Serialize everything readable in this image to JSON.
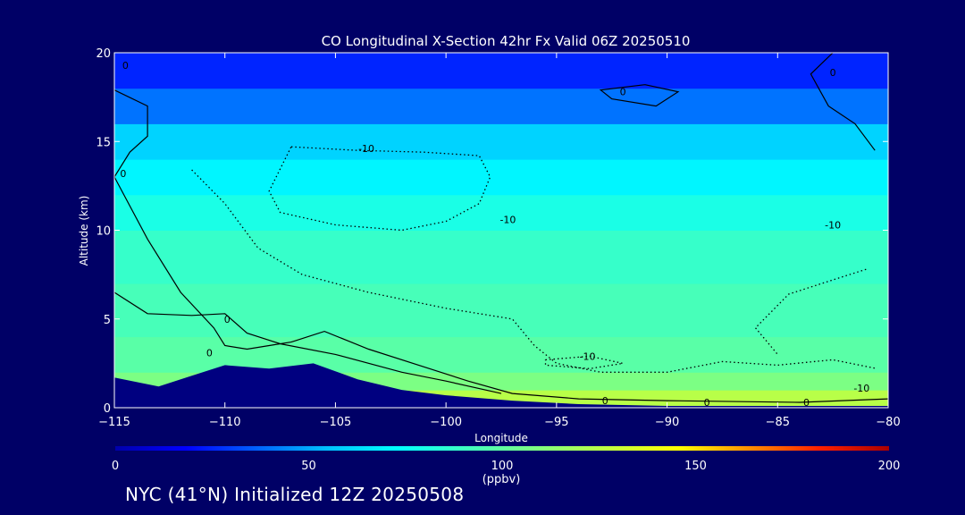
{
  "footer_text": "NYC (41°N) Initialized 12Z 20250508",
  "chart_data": {
    "type": "heatmap",
    "title": "CO Longitudinal X-Section 42hr  Fx Valid 06Z 20250510",
    "xlabel": "Longitude",
    "ylabel": "Altitude (km)",
    "xlim": [
      -115,
      -80
    ],
    "ylim": [
      0,
      20
    ],
    "x_ticks": [
      -115,
      -110,
      -105,
      -100,
      -95,
      -90,
      -85,
      -80
    ],
    "y_ticks": [
      0,
      5,
      10,
      15,
      20
    ],
    "colorbar": {
      "label": "(ppbv)",
      "range": [
        0,
        200
      ],
      "ticks": [
        0,
        50,
        100,
        150,
        200
      ],
      "colors": [
        "#0000aa",
        "#0000ff",
        "#0060ff",
        "#00c0ff",
        "#00ffff",
        "#40ffc0",
        "#80ff80",
        "#c0ff40",
        "#ffff00",
        "#ff9000",
        "#ff2000",
        "#aa0000"
      ]
    },
    "altitude_bands": [
      {
        "bottom": 0,
        "top": 1,
        "value": 125
      },
      {
        "bottom": 1,
        "top": 2,
        "value": 108
      },
      {
        "bottom": 2,
        "top": 4,
        "value": 98
      },
      {
        "bottom": 4,
        "top": 7,
        "value": 93
      },
      {
        "bottom": 7,
        "top": 10,
        "value": 88
      },
      {
        "bottom": 10,
        "top": 12,
        "value": 80
      },
      {
        "bottom": 12,
        "top": 14,
        "value": 70
      },
      {
        "bottom": 14,
        "top": 16,
        "value": 60
      },
      {
        "bottom": 16,
        "top": 18,
        "value": 40
      },
      {
        "bottom": 18,
        "top": 20,
        "value": 25
      }
    ],
    "terrain_km": [
      {
        "lon": -115,
        "alt": 1.7
      },
      {
        "lon": -113,
        "alt": 1.2
      },
      {
        "lon": -111.5,
        "alt": 1.8
      },
      {
        "lon": -110,
        "alt": 2.4
      },
      {
        "lon": -108,
        "alt": 2.2
      },
      {
        "lon": -106,
        "alt": 2.5
      },
      {
        "lon": -104,
        "alt": 1.6
      },
      {
        "lon": -102,
        "alt": 1.0
      },
      {
        "lon": -100,
        "alt": 0.7
      },
      {
        "lon": -97,
        "alt": 0.4
      },
      {
        "lon": -94,
        "alt": 0.2
      },
      {
        "lon": -90,
        "alt": 0.1
      },
      {
        "lon": -85,
        "alt": 0.1
      },
      {
        "lon": -80,
        "alt": 0.1
      }
    ],
    "contours": [
      {
        "level": "0",
        "style": "solid",
        "points": [
          [
            -115,
            17.9
          ],
          [
            -113.5,
            17.0
          ],
          [
            -113.5,
            15.3
          ],
          [
            -114.3,
            14.4
          ],
          [
            -115,
            13.0
          ],
          [
            -113.5,
            9.5
          ],
          [
            -112,
            6.5
          ],
          [
            -110.5,
            4.5
          ],
          [
            -110,
            3.5
          ],
          [
            -109,
            3.3
          ],
          [
            -108,
            3.5
          ],
          [
            -107,
            3.7
          ],
          [
            -105.5,
            4.3
          ],
          [
            -103.5,
            3.3
          ],
          [
            -101,
            2.3
          ],
          [
            -99,
            1.5
          ],
          [
            -97,
            0.8
          ],
          [
            -94,
            0.5
          ],
          [
            -90,
            0.4
          ],
          [
            -84,
            0.3
          ],
          [
            -80,
            0.5
          ]
        ]
      },
      {
        "level": "0",
        "style": "solid",
        "points": [
          [
            -115,
            6.5
          ],
          [
            -113.5,
            5.3
          ],
          [
            -111.5,
            5.2
          ],
          [
            -110,
            5.3
          ],
          [
            -109,
            4.2
          ],
          [
            -107.5,
            3.6
          ],
          [
            -105,
            3.0
          ],
          [
            -102,
            2.0
          ],
          [
            -100,
            1.5
          ],
          [
            -97.5,
            0.8
          ]
        ]
      },
      {
        "level": "0",
        "style": "solid",
        "points": [
          [
            -91,
            18.2
          ],
          [
            -89.5,
            17.8
          ],
          [
            -90.5,
            17.0
          ],
          [
            -92.5,
            17.4
          ],
          [
            -93,
            17.9
          ],
          [
            -91,
            18.2
          ]
        ]
      },
      {
        "level": "0",
        "style": "solid",
        "points": [
          [
            -82.5,
            20
          ],
          [
            -83.5,
            18.8
          ],
          [
            -82.7,
            17.0
          ],
          [
            -81.5,
            16.0
          ],
          [
            -80.6,
            14.5
          ]
        ]
      },
      {
        "level": "-10",
        "style": "dotted",
        "points": [
          [
            -107,
            14.7
          ],
          [
            -104,
            14.5
          ],
          [
            -101,
            14.4
          ],
          [
            -98.5,
            14.2
          ],
          [
            -98,
            13.0
          ],
          [
            -98.5,
            11.5
          ],
          [
            -100,
            10.5
          ],
          [
            -102,
            10.0
          ],
          [
            -105,
            10.3
          ],
          [
            -107.5,
            11.0
          ],
          [
            -108,
            12.2
          ],
          [
            -107,
            14.7
          ]
        ]
      },
      {
        "level": "-10",
        "style": "dotted",
        "points": [
          [
            -111.5,
            13.4
          ],
          [
            -110,
            11.5
          ],
          [
            -108.5,
            9.0
          ],
          [
            -106.5,
            7.5
          ],
          [
            -103.5,
            6.5
          ],
          [
            -100,
            5.6
          ],
          [
            -97,
            5.0
          ],
          [
            -96,
            3.5
          ],
          [
            -95,
            2.5
          ],
          [
            -93,
            2.0
          ],
          [
            -90,
            2.0
          ],
          [
            -87.5,
            2.6
          ],
          [
            -85,
            2.4
          ],
          [
            -82.5,
            2.7
          ],
          [
            -80.5,
            2.2
          ]
        ]
      },
      {
        "level": "-10",
        "style": "dotted",
        "points": [
          [
            -81,
            7.8
          ],
          [
            -82.5,
            7.2
          ],
          [
            -84.5,
            6.4
          ],
          [
            -86,
            4.5
          ],
          [
            -85,
            3.0
          ]
        ]
      },
      {
        "level": "-10",
        "style": "dotted",
        "points": [
          [
            -95.5,
            2.7
          ],
          [
            -93.5,
            2.9
          ],
          [
            -92,
            2.5
          ],
          [
            -93.5,
            2.2
          ],
          [
            -95.5,
            2.4
          ],
          [
            -95.5,
            2.7
          ]
        ]
      }
    ],
    "contour_labels": [
      {
        "text": "0",
        "lon": -114.5,
        "alt": 19.3
      },
      {
        "text": "0",
        "lon": -114.6,
        "alt": 13.2
      },
      {
        "text": "0",
        "lon": -109.9,
        "alt": 5.0
      },
      {
        "text": "0",
        "lon": -110.7,
        "alt": 3.1
      },
      {
        "text": "0",
        "lon": -92.0,
        "alt": 17.8
      },
      {
        "text": "0",
        "lon": -82.5,
        "alt": 18.9
      },
      {
        "text": "0",
        "lon": -92.8,
        "alt": 0.4
      },
      {
        "text": "0",
        "lon": -88.2,
        "alt": 0.3
      },
      {
        "text": "0",
        "lon": -83.7,
        "alt": 0.3
      },
      {
        "text": "-10",
        "lon": -103.6,
        "alt": 14.6
      },
      {
        "text": "-10",
        "lon": -97.2,
        "alt": 10.6
      },
      {
        "text": "-10",
        "lon": -82.5,
        "alt": 10.3
      },
      {
        "text": "-10",
        "lon": -93.6,
        "alt": 2.9
      },
      {
        "text": "-10",
        "lon": -81.2,
        "alt": 1.1
      }
    ]
  }
}
